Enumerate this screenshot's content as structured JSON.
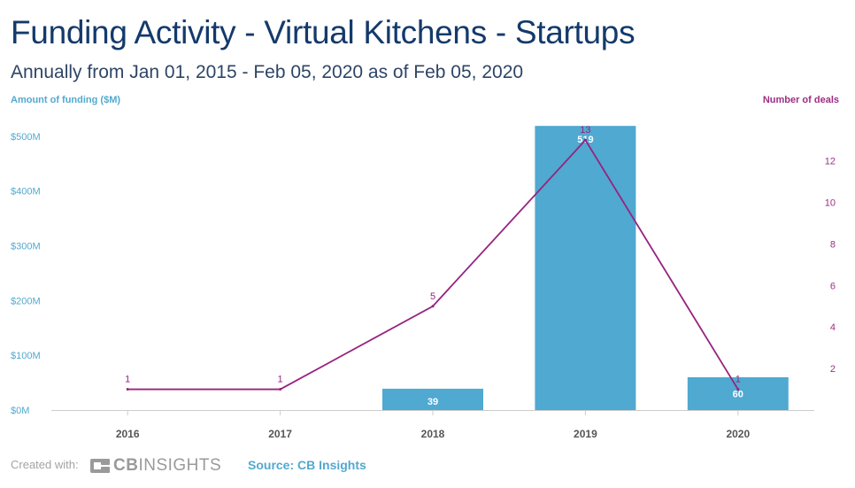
{
  "header": {
    "title": "Funding Activity - Virtual Kitchens - Startups",
    "subtitle": "Annually from Jan 01, 2015 - Feb 05, 2020 as of Feb 05, 2020"
  },
  "chart_data": {
    "type": "bar",
    "categories": [
      "2016",
      "2017",
      "2018",
      "2019",
      "2020"
    ],
    "series": [
      {
        "type": "bar",
        "axis": "left",
        "values": [
          0,
          0,
          39,
          519,
          60
        ],
        "data_labels": [
          "",
          "",
          "39",
          "519",
          "60"
        ],
        "color": "#4fa9d1"
      },
      {
        "type": "line",
        "axis": "right",
        "values": [
          1,
          1,
          5,
          13,
          1
        ],
        "data_labels": [
          "1",
          "1",
          "5",
          "13",
          "1"
        ],
        "color": "#97237f"
      }
    ],
    "ylabel": "Amount of funding ($M)",
    "y2label": "Number of deals",
    "ylim": [
      0,
      550
    ],
    "yticks": [
      0,
      100,
      200,
      300,
      400,
      500
    ],
    "ytick_labels": [
      "$0M",
      "$100M",
      "$200M",
      "$300M",
      "$400M",
      "$500M"
    ],
    "y2lim": [
      0,
      14.5
    ],
    "y2ticks": [
      2,
      4,
      6,
      8,
      10,
      12
    ],
    "y2tick_labels": [
      "2",
      "4",
      "6",
      "8",
      "10",
      "12"
    ],
    "grid": false,
    "legend": "none",
    "colors": {
      "bar": "#4fa9d1",
      "line": "#97237f",
      "left_axis_text": "#52a9cf",
      "right_axis_text": "#9e2d84",
      "x_tick_text": "#555555",
      "axis_line": "#cccccc"
    }
  },
  "footer": {
    "created_with": "Created with:",
    "logo_bold": "CB",
    "logo_rest": "INSIGHTS",
    "source": "Source: CB Insights"
  }
}
